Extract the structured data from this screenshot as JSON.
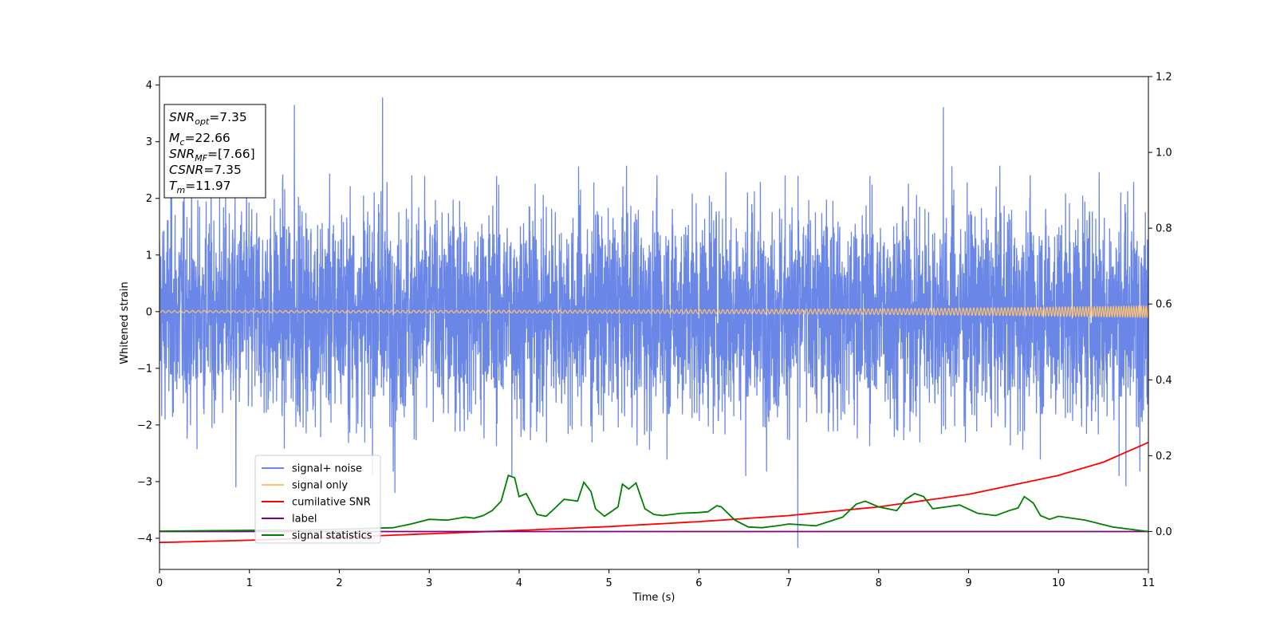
{
  "chart_data": {
    "type": "line",
    "title": "",
    "xlabel": "Time (s)",
    "ylabel": "Whitened strain",
    "xlim": [
      0,
      11
    ],
    "ylim": [
      -4.55,
      4.15
    ],
    "y2lim": [
      -0.1,
      1.2
    ],
    "xticks": [
      "0",
      "1",
      "2",
      "3",
      "4",
      "5",
      "6",
      "7",
      "8",
      "9",
      "10",
      "11"
    ],
    "yticks": [
      "−4",
      "−3",
      "−2",
      "−1",
      "0",
      "1",
      "2",
      "3",
      "4"
    ],
    "y2ticks": [
      "0.0",
      "0.2",
      "0.4",
      "0.6",
      "0.8",
      "1.0",
      "1.2"
    ],
    "grid": false,
    "legend_position": "lower-left",
    "annotation": {
      "lines": [
        {
          "var": "SNR",
          "sub": "opt",
          "value": "=7.35"
        },
        {
          "var": "M",
          "sub": "c",
          "value": "=22.66"
        },
        {
          "var": "SNR",
          "sub": "MF",
          "value": "=[7.66]"
        },
        {
          "var": "CSNR",
          "sub": "",
          "value": "=7.35"
        },
        {
          "var": "T",
          "sub": "m",
          "value": "=11.97"
        }
      ]
    },
    "series": [
      {
        "name": "signal+ noise",
        "color": "#6a86e6",
        "axis": "left",
        "noise_sigma": 0.95,
        "sample_rate_per_s": 420,
        "peak_values": [
          {
            "x": 2.48,
            "y": 3.78
          },
          {
            "x": 1.5,
            "y": 3.65
          },
          {
            "x": 8.72,
            "y": 3.61
          },
          {
            "x": 7.1,
            "y": -4.17
          },
          {
            "x": 2.62,
            "y": -3.2
          },
          {
            "x": 0.85,
            "y": -3.1
          },
          {
            "x": 10.75,
            "y": -3.08
          },
          {
            "x": 3.92,
            "y": -2.9
          }
        ]
      },
      {
        "name": "signal only",
        "color": "#ffc36e",
        "axis": "left",
        "amplitude_start": 0.02,
        "amplitude_end": 0.1
      },
      {
        "name": "cumilative SNR",
        "color": "#ff0000",
        "axis": "right",
        "x": [
          0,
          1,
          2,
          3,
          4,
          5,
          6,
          7,
          8,
          9,
          10,
          10.5,
          11
        ],
        "values": [
          -0.029,
          -0.023,
          -0.015,
          -0.006,
          0.003,
          0.013,
          0.026,
          0.042,
          0.065,
          0.098,
          0.148,
          0.183,
          0.235
        ]
      },
      {
        "name": "label",
        "color": "#800080",
        "axis": "right",
        "x": [
          0,
          11
        ],
        "values": [
          0,
          0
        ]
      },
      {
        "name": "signal statistics",
        "color": "#008000",
        "axis": "right",
        "x": [
          0,
          0.5,
          1,
          1.5,
          2,
          2.3,
          2.6,
          2.8,
          3.0,
          3.2,
          3.4,
          3.5,
          3.6,
          3.7,
          3.8,
          3.88,
          3.95,
          4.0,
          4.08,
          4.2,
          4.3,
          4.4,
          4.5,
          4.6,
          4.65,
          4.72,
          4.8,
          4.85,
          4.95,
          5.1,
          5.15,
          5.22,
          5.3,
          5.4,
          5.5,
          5.6,
          5.8,
          6.0,
          6.1,
          6.2,
          6.25,
          6.4,
          6.55,
          6.7,
          6.9,
          7.0,
          7.3,
          7.6,
          7.75,
          7.85,
          8.0,
          8.2,
          8.3,
          8.4,
          8.5,
          8.6,
          8.75,
          8.9,
          9.1,
          9.3,
          9.45,
          9.55,
          9.62,
          9.72,
          9.8,
          9.9,
          10.0,
          10.3,
          10.6,
          11
        ],
        "values": [
          0.001,
          0.002,
          0.003,
          0.004,
          0.006,
          0.008,
          0.01,
          0.02,
          0.032,
          0.03,
          0.038,
          0.035,
          0.042,
          0.055,
          0.08,
          0.148,
          0.142,
          0.092,
          0.1,
          0.045,
          0.04,
          0.062,
          0.085,
          0.082,
          0.08,
          0.13,
          0.105,
          0.06,
          0.04,
          0.065,
          0.125,
          0.112,
          0.128,
          0.06,
          0.045,
          0.042,
          0.048,
          0.05,
          0.052,
          0.068,
          0.065,
          0.03,
          0.012,
          0.01,
          0.016,
          0.02,
          0.015,
          0.038,
          0.072,
          0.08,
          0.065,
          0.055,
          0.085,
          0.1,
          0.092,
          0.06,
          0.065,
          0.07,
          0.048,
          0.042,
          0.055,
          0.062,
          0.092,
          0.075,
          0.042,
          0.032,
          0.04,
          0.03,
          0.012,
          0.0
        ]
      }
    ]
  }
}
